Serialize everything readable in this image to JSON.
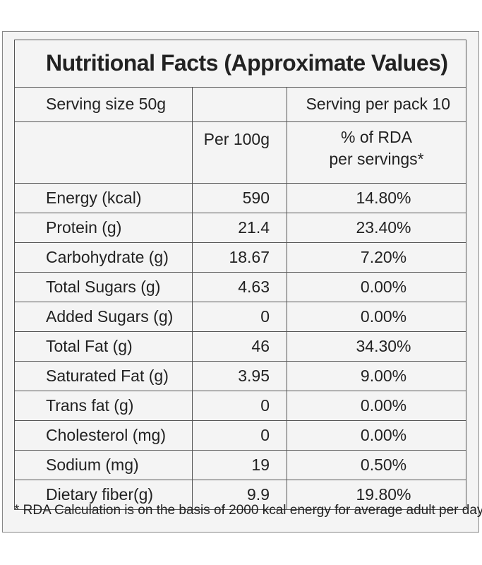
{
  "title": "Nutritional Facts (Approximate Values)",
  "serving_size": "Serving size 50g",
  "serving_per_pack": "Serving per pack 10",
  "headers": {
    "per_100g": "Per 100g",
    "rda_line1": "% of RDA",
    "rda_line2": "per servings*"
  },
  "rows": [
    {
      "name": "Energy (kcal)",
      "per100": "590",
      "rda": "14.80%"
    },
    {
      "name": "Protein (g)",
      "per100": "21.4",
      "rda": "23.40%"
    },
    {
      "name": "Carbohydrate (g)",
      "per100": "18.67",
      "rda": "7.20%"
    },
    {
      "name": "Total Sugars (g)",
      "per100": "4.63",
      "rda": "0.00%"
    },
    {
      "name": "Added Sugars (g)",
      "per100": "0",
      "rda": "0.00%"
    },
    {
      "name": "Total Fat (g)",
      "per100": "46",
      "rda": "34.30%"
    },
    {
      "name": "Saturated Fat (g)",
      "per100": "3.95",
      "rda": "9.00%"
    },
    {
      "name": "Trans fat (g)",
      "per100": "0",
      "rda": "0.00%"
    },
    {
      "name": "Cholesterol (mg)",
      "per100": "0",
      "rda": "0.00%"
    },
    {
      "name": "Sodium (mg)",
      "per100": "19",
      "rda": "0.50%"
    },
    {
      "name": "Dietary fiber(g)",
      "per100": "9.9",
      "rda": "19.80%"
    }
  ],
  "footnote": "* RDA Calculation is on the basis of 2000 kcal energy for average adult per day"
}
